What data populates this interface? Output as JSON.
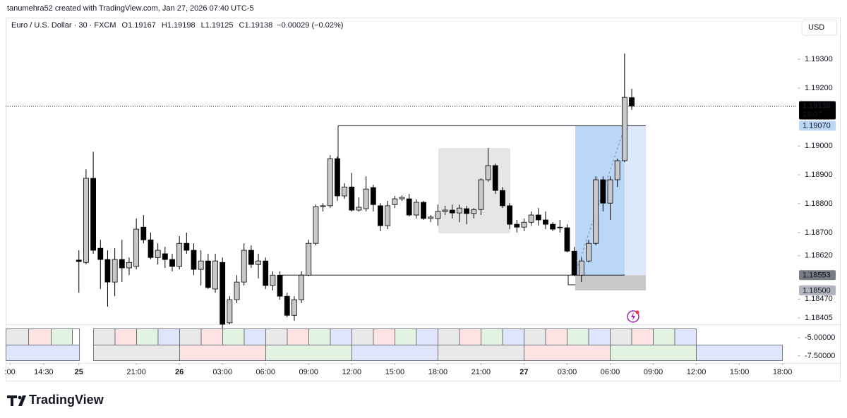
{
  "header": {
    "text": "tanumehra52 created with TradingView.com, Jan 27, 2026 07:40 UTC-5"
  },
  "footer": {
    "brand": "TradingView"
  },
  "chart_data": {
    "type": "candlestick",
    "legend": {
      "symbol": "Euro / U.S. Dollar · 30 · FXCM",
      "o": "O",
      "h": "H",
      "l": "L",
      "c": "C",
      "change": "−0.00029 (−0.02%)"
    },
    "currency": "USD",
    "countdown": "19:07",
    "up_color": "#c8c8cc",
    "down_color": "#000000",
    "xlim": [
      -10.2,
      100.1
    ],
    "xticks": [
      {
        "value": -9.6,
        "label": ":00"
      },
      {
        "value": -4.9,
        "label": "14:30"
      },
      {
        "value": 0,
        "label": "25"
      },
      {
        "value": 8,
        "label": "21:00"
      },
      {
        "value": 14,
        "label": "26"
      },
      {
        "value": 20,
        "label": "03:00"
      },
      {
        "value": 26,
        "label": "06:00"
      },
      {
        "value": 32,
        "label": "09:00"
      },
      {
        "value": 38,
        "label": "12:00"
      },
      {
        "value": 44,
        "label": "15:00"
      },
      {
        "value": 50,
        "label": "18:00"
      },
      {
        "value": 56,
        "label": "21:00"
      },
      {
        "value": 62,
        "label": "27"
      },
      {
        "value": 68,
        "label": "03:00"
      },
      {
        "value": 74,
        "label": "06:00"
      },
      {
        "value": 80,
        "label": "09:00"
      },
      {
        "value": 86,
        "label": "12:00"
      },
      {
        "value": 92,
        "label": "15:00"
      },
      {
        "value": 98,
        "label": "18:00"
      }
    ],
    "ylim": [
      1.18383,
      1.19444
    ],
    "yticks": [
      {
        "value": 1.193,
        "label": "1.19300"
      },
      {
        "value": 1.192,
        "label": "1.19200"
      },
      {
        "value": 1.19,
        "label": "1.19000"
      },
      {
        "value": 1.189,
        "label": "1.18900"
      },
      {
        "value": 1.188,
        "label": "1.18800"
      },
      {
        "value": 1.187,
        "label": "1.18700"
      },
      {
        "value": 1.1862,
        "label": "1.18620"
      },
      {
        "value": 1.1847,
        "label": "1.18470"
      },
      {
        "value": 1.18405,
        "label": "1.18405"
      }
    ],
    "levels": [
      {
        "value": 1.1907,
        "label": "1.19070",
        "color": "#bbd7f8",
        "text_color": "#131722"
      },
      {
        "value": 1.18553,
        "label": "1.18553",
        "color": "#787b86",
        "text_color": "#ffffff"
      },
      {
        "value": 1.185,
        "label": "1.18500",
        "color": "#b2b5be",
        "text_color": "#131722"
      }
    ],
    "pane_ylim": [
      -3.7,
      -8.2
    ],
    "pane_yticks": [
      {
        "value": -5,
        "label": "-5.00000"
      },
      {
        "value": -7.5,
        "label": "-7.50000"
      }
    ],
    "ohlc": [
      [
        1.18605,
        1.18639,
        1.18492,
        1.186
      ],
      [
        1.18597,
        1.18919,
        1.1859,
        1.18888
      ],
      [
        1.18888,
        1.1898,
        1.18627,
        1.18639
      ],
      [
        1.18646,
        1.18675,
        1.18505,
        1.18607
      ],
      [
        1.18607,
        1.18639,
        1.18444,
        1.18529
      ],
      [
        1.18529,
        1.18646,
        1.1848,
        1.18607
      ],
      [
        1.18607,
        1.18675,
        1.18529,
        1.18578
      ],
      [
        1.18578,
        1.18614,
        1.18553,
        1.18597
      ],
      [
        1.18583,
        1.18749,
        1.18573,
        1.18712
      ],
      [
        1.18719,
        1.18761,
        1.18663,
        1.18675
      ],
      [
        1.18675,
        1.187,
        1.18607,
        1.18614
      ],
      [
        1.18614,
        1.18663,
        1.1859,
        1.18639
      ],
      [
        1.18627,
        1.18651,
        1.18578,
        1.18607
      ],
      [
        1.18607,
        1.18627,
        1.18566,
        1.18583
      ],
      [
        1.18583,
        1.18688,
        1.18573,
        1.18663
      ],
      [
        1.18663,
        1.187,
        1.18627,
        1.18639
      ],
      [
        1.18639,
        1.18663,
        1.18553,
        1.18573
      ],
      [
        1.18573,
        1.18639,
        1.18517,
        1.18602
      ],
      [
        1.18602,
        1.18627,
        1.18505,
        1.1851
      ],
      [
        1.18505,
        1.18627,
        1.18492,
        1.18602
      ],
      [
        1.18597,
        1.18614,
        1.1837,
        1.18383
      ],
      [
        1.18388,
        1.1848,
        1.18383,
        1.18468
      ],
      [
        1.18468,
        1.18553,
        1.18456,
        1.18529
      ],
      [
        1.18529,
        1.18663,
        1.18517,
        1.18639
      ],
      [
        1.18639,
        1.18656,
        1.18578,
        1.1859
      ],
      [
        1.1859,
        1.18627,
        1.18541,
        1.18602
      ],
      [
        1.18602,
        1.18614,
        1.18505,
        1.18517
      ],
      [
        1.18517,
        1.18566,
        1.185,
        1.18553
      ],
      [
        1.18553,
        1.18566,
        1.18468,
        1.1848
      ],
      [
        1.1848,
        1.18492,
        1.18407,
        1.18414
      ],
      [
        1.18414,
        1.1848,
        1.18395,
        1.18468
      ],
      [
        1.18468,
        1.18566,
        1.18456,
        1.18553
      ],
      [
        1.18553,
        1.18675,
        1.18549,
        1.18663
      ],
      [
        1.18663,
        1.18797,
        1.18656,
        1.1879
      ],
      [
        1.1879,
        1.18802,
        1.18773,
        1.18793
      ],
      [
        1.18793,
        1.18968,
        1.18785,
        1.18956
      ],
      [
        1.18956,
        1.18963,
        1.1881,
        1.18827
      ],
      [
        1.18827,
        1.18871,
        1.18817,
        1.18858
      ],
      [
        1.18858,
        1.18907,
        1.18773,
        1.18778
      ],
      [
        1.18778,
        1.18822,
        1.18773,
        1.18788
      ],
      [
        1.18783,
        1.18895,
        1.18773,
        1.18851
      ],
      [
        1.18856,
        1.18866,
        1.18773,
        1.18797
      ],
      [
        1.18793,
        1.18802,
        1.18705,
        1.18724
      ],
      [
        1.18724,
        1.1881,
        1.18712,
        1.18793
      ],
      [
        1.18797,
        1.18827,
        1.18785,
        1.18817
      ],
      [
        1.18817,
        1.18829,
        1.1881,
        1.18822
      ],
      [
        1.18817,
        1.18834,
        1.18756,
        1.18761
      ],
      [
        1.18761,
        1.18815,
        1.18749,
        1.18805
      ],
      [
        1.18805,
        1.1881,
        1.18744,
        1.18749
      ],
      [
        1.18749,
        1.18761,
        1.18736,
        1.18754
      ],
      [
        1.18749,
        1.18797,
        1.18724,
        1.18773
      ],
      [
        1.18773,
        1.18793,
        1.18761,
        1.18778
      ],
      [
        1.18778,
        1.18797,
        1.18749,
        1.18768
      ],
      [
        1.18768,
        1.18797,
        1.18736,
        1.18785
      ],
      [
        1.18783,
        1.18793,
        1.18729,
        1.18766
      ],
      [
        1.18766,
        1.18785,
        1.18749,
        1.1878
      ],
      [
        1.1878,
        1.18888,
        1.18761,
        1.18883
      ],
      [
        1.18883,
        1.18993,
        1.18876,
        1.18932
      ],
      [
        1.18932,
        1.18939,
        1.18834,
        1.18846
      ],
      [
        1.18846,
        1.18858,
        1.18785,
        1.18793
      ],
      [
        1.18793,
        1.18802,
        1.18712,
        1.18729
      ],
      [
        1.18729,
        1.18744,
        1.187,
        1.18719
      ],
      [
        1.18719,
        1.18749,
        1.18705,
        1.18736
      ],
      [
        1.18736,
        1.18773,
        1.18724,
        1.18761
      ],
      [
        1.18761,
        1.18785,
        1.18724,
        1.18744
      ],
      [
        1.18744,
        1.18773,
        1.18712,
        1.18729
      ],
      [
        1.18729,
        1.18736,
        1.18705,
        1.18712
      ],
      [
        1.18719,
        1.18744,
        1.187,
        1.18717
      ],
      [
        1.18717,
        1.18729,
        1.18632,
        1.18636
      ],
      [
        1.18636,
        1.18651,
        1.18549,
        1.18553
      ],
      [
        1.18553,
        1.18614,
        1.18529,
        1.18602
      ],
      [
        1.18602,
        1.18675,
        1.18597,
        1.18663
      ],
      [
        1.18663,
        1.18895,
        1.18656,
        1.18883
      ],
      [
        1.18883,
        1.18895,
        1.18773,
        1.18802
      ],
      [
        1.18802,
        1.18895,
        1.18744,
        1.18883
      ],
      [
        1.18883,
        1.18956,
        1.18858,
        1.18949
      ],
      [
        1.18949,
        1.1932,
        1.18944,
        1.19168
      ],
      [
        1.19167,
        1.19198,
        1.19125,
        1.19138
      ]
    ]
  }
}
